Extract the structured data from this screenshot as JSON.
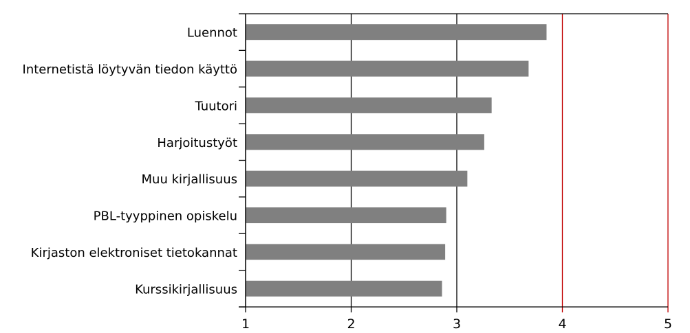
{
  "chart_data": {
    "type": "bar",
    "orientation": "horizontal",
    "categories": [
      "Luennot",
      "Internetistä löytyvän tiedon käyttö",
      "Tuutori",
      "Harjoitustyöt",
      "Muu kirjallisuus",
      "PBL-tyyppinen opiskelu",
      "Kirjaston elektroniset tietokannat",
      "Kurssikirjallisuus"
    ],
    "values": [
      3.85,
      3.68,
      3.33,
      3.26,
      3.1,
      2.9,
      2.89,
      2.86
    ],
    "xlim": [
      1,
      5
    ],
    "xticks": [
      "1",
      "2",
      "3",
      "4",
      "5"
    ],
    "title": "",
    "xlabel": "",
    "ylabel": "",
    "grid": "vertical",
    "legend": "none",
    "colors": {
      "bar": "#808080",
      "grid_dark": "#000000",
      "grid_red": "#c00000",
      "axis": "#000000"
    }
  }
}
